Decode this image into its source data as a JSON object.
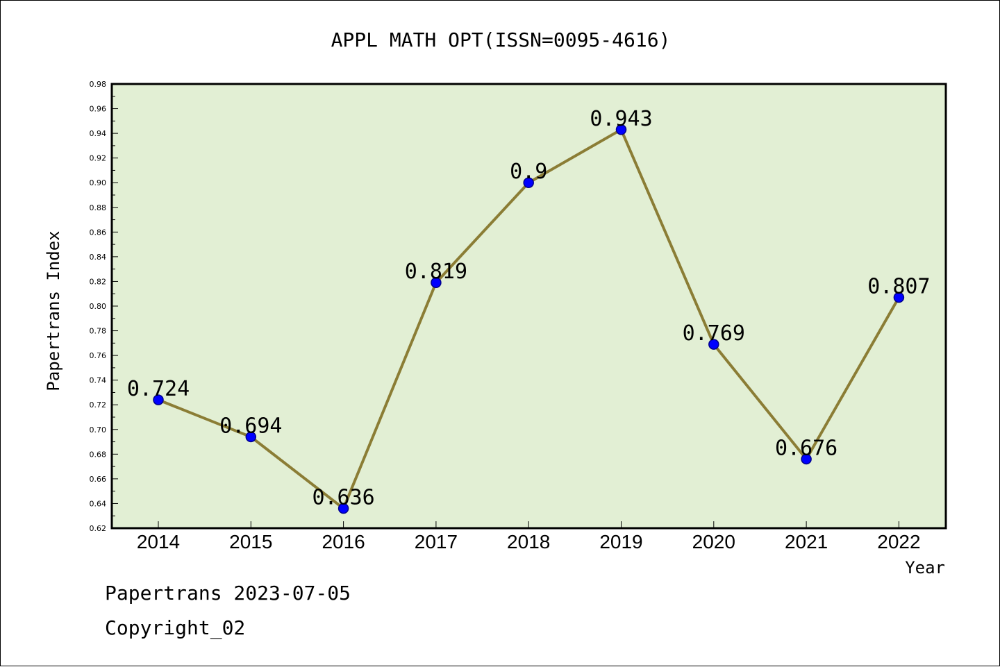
{
  "chart_data": {
    "type": "line",
    "title": "APPL MATH OPT(ISSN=0095-4616)",
    "xlabel": "Year",
    "ylabel": "Papertrans Index",
    "categories": [
      "2014",
      "2015",
      "2016",
      "2017",
      "2018",
      "2019",
      "2020",
      "2021",
      "2022"
    ],
    "series": [
      {
        "values": [
          0.724,
          0.694,
          0.636,
          0.819,
          0.9,
          0.943,
          0.769,
          0.676,
          0.807
        ],
        "data_labels": [
          "0.724",
          "0.694",
          "0.636",
          "0.819",
          "0.9",
          "0.943",
          "0.769",
          "0.676",
          "0.807"
        ]
      }
    ],
    "ylim": [
      0.62,
      0.98
    ],
    "yticks": [
      "0.62",
      "0.64",
      "0.66",
      "0.68",
      "0.70",
      "0.72",
      "0.74",
      "0.76",
      "0.78",
      "0.80",
      "0.82",
      "0.84",
      "0.86",
      "0.88",
      "0.90",
      "0.92",
      "0.94",
      "0.96",
      "0.98"
    ],
    "grid": false,
    "legend": "none",
    "colors": {
      "plot_background": "#e2efd4",
      "line": "#8b7d35",
      "marker": "#0000ff",
      "marker_edge": "#00008b"
    }
  },
  "footer": {
    "date_line": "Papertrans 2023-07-05",
    "copyright": "Copyright_02"
  }
}
